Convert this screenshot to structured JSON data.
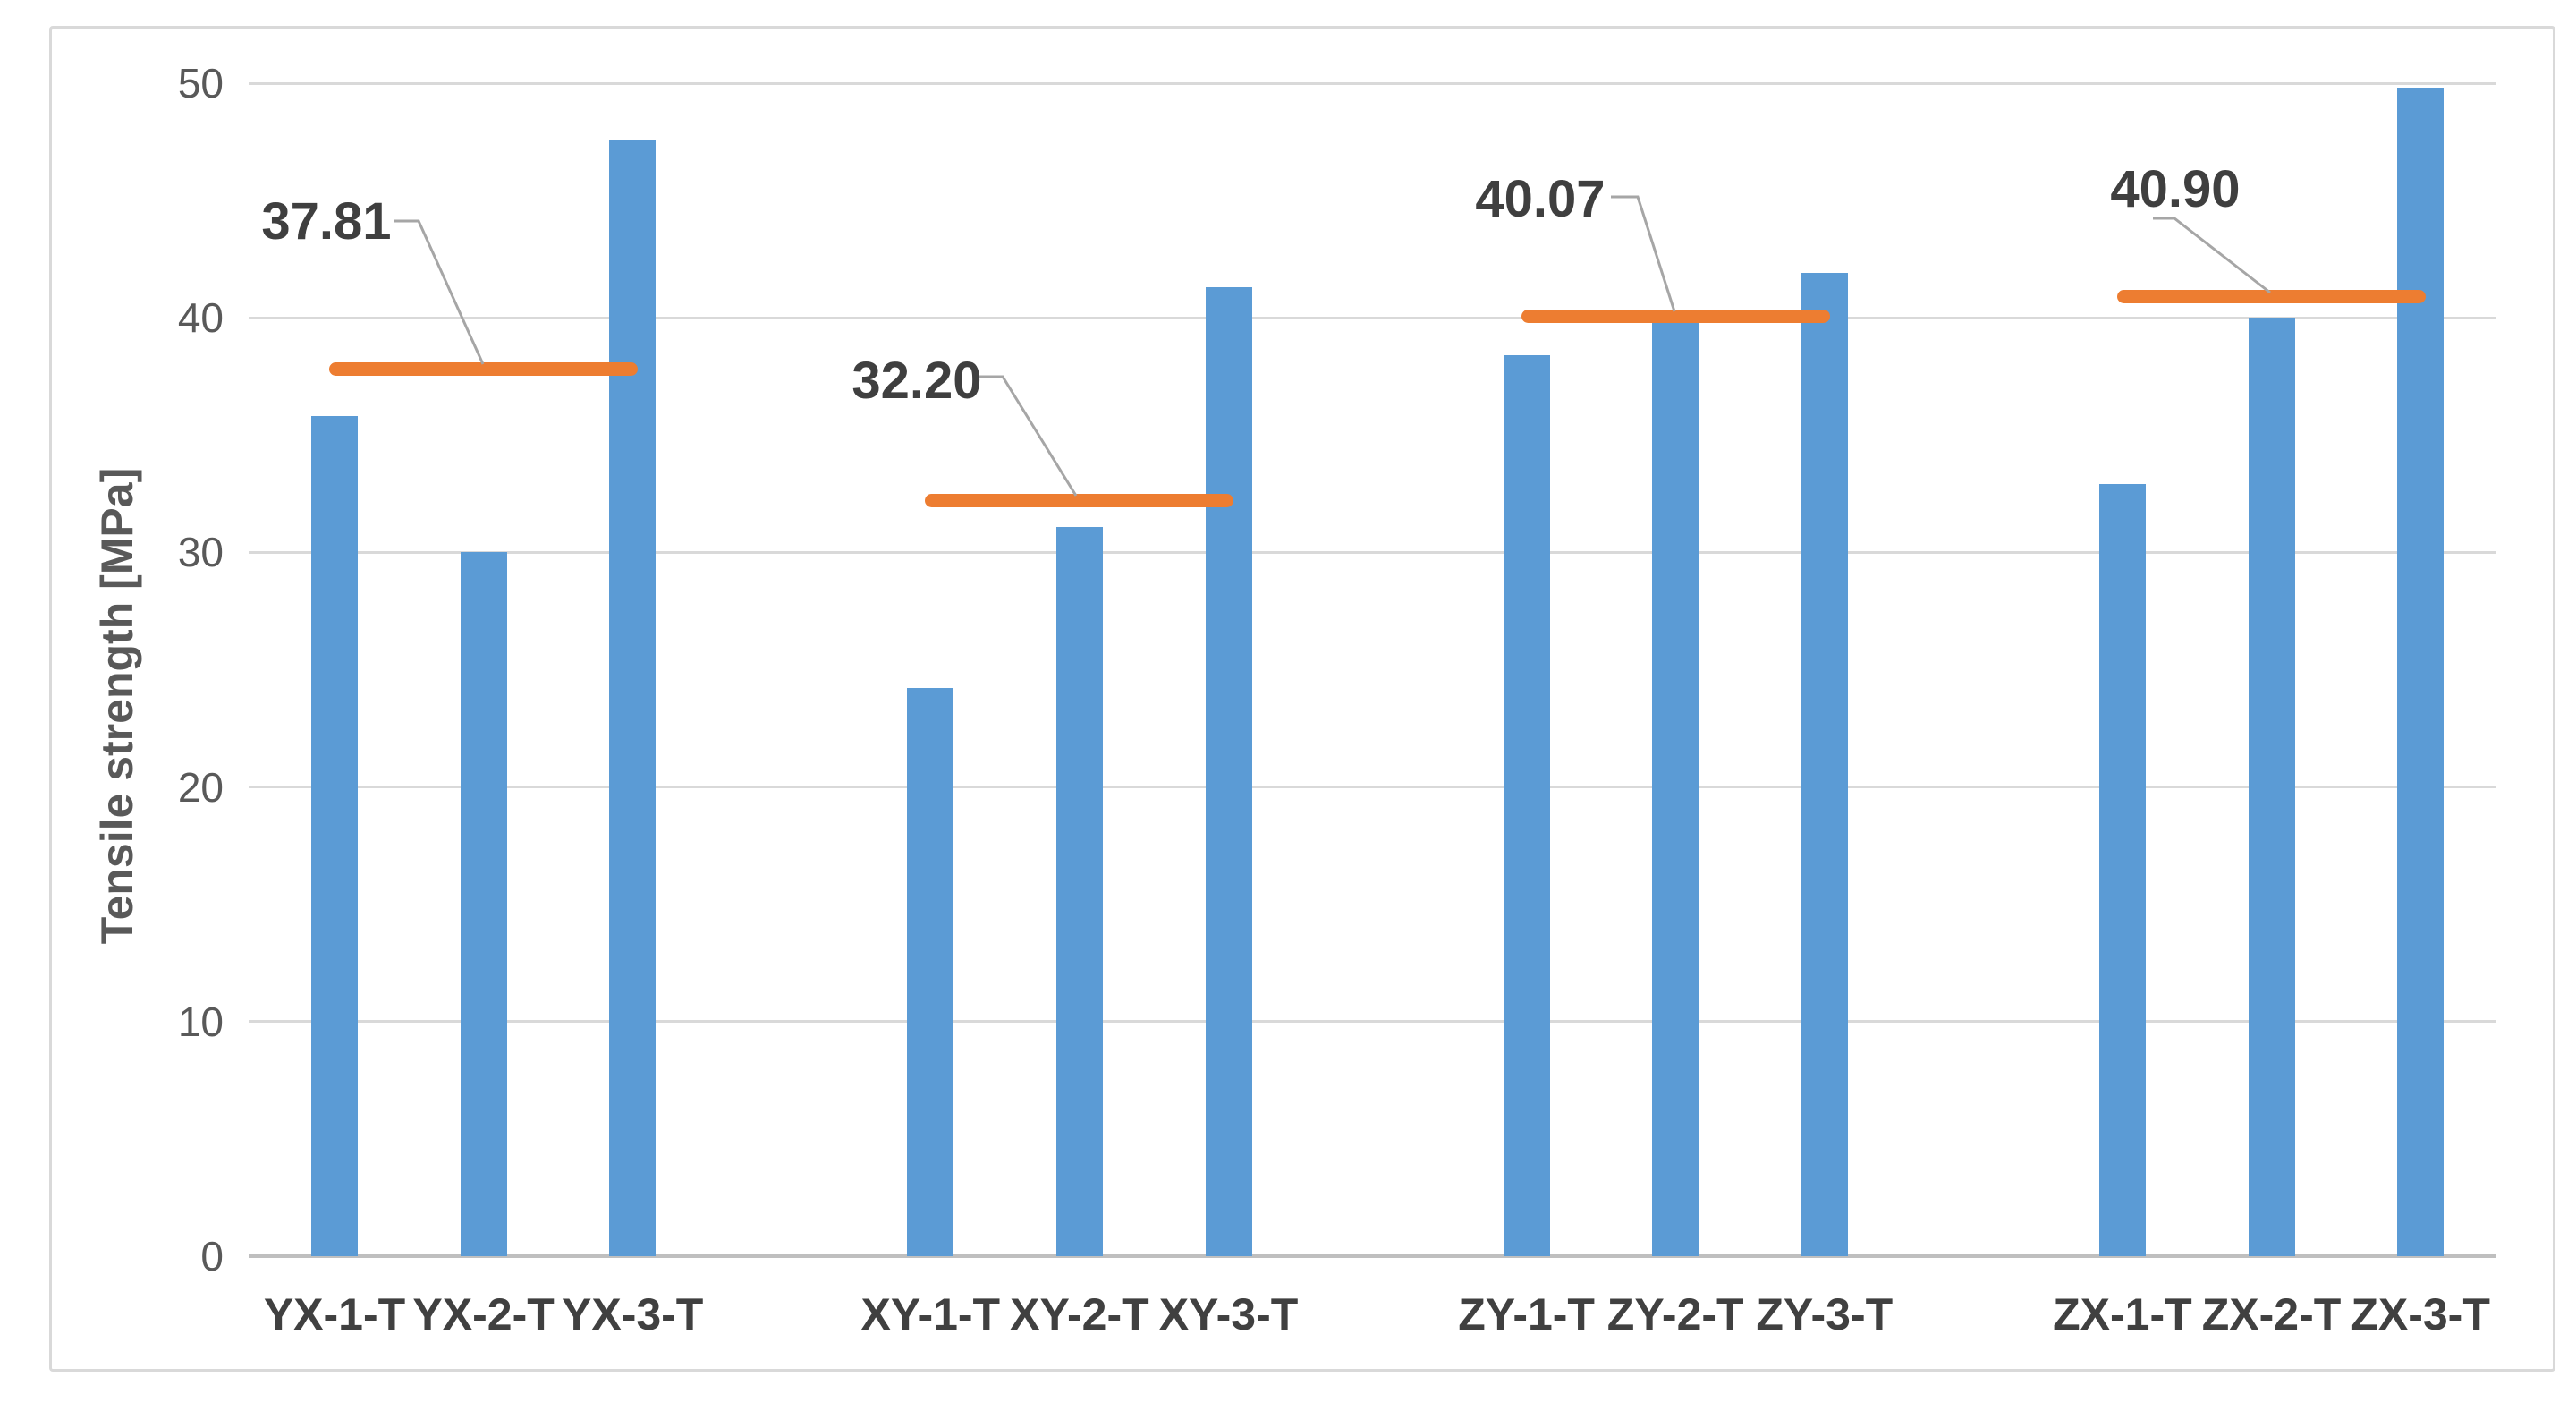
{
  "chart_data": {
    "type": "bar",
    "title": "",
    "ylabel": "Tensile strength [MPa]",
    "xlabel": "",
    "ylim": [
      0,
      50
    ],
    "yticks": [
      0,
      10,
      20,
      30,
      40,
      50
    ],
    "grid": true,
    "legend": false,
    "bar_color": "#5b9bd5",
    "mean_line_color": "#ed7d31",
    "gridline_color": "#d9d9d9",
    "axis_line_color": "#bfbfbf",
    "leader_line_color": "#a6a6a6",
    "categories": [
      "YX-1-T",
      "YX-2-T",
      "YX-3-T",
      "XY-1-T",
      "XY-2-T",
      "XY-3-T",
      "ZY-1-T",
      "ZY-2-T",
      "ZY-3-T",
      "ZX-1-T",
      "ZX-2-T",
      "ZX-3-T"
    ],
    "values": [
      35.8,
      30.0,
      47.6,
      24.2,
      31.1,
      41.3,
      38.4,
      39.9,
      41.9,
      32.9,
      40.0,
      49.8
    ],
    "mean_lines": [
      {
        "label": "37.81",
        "value": 37.81,
        "group": [
          "YX-1-T",
          "YX-2-T",
          "YX-3-T"
        ]
      },
      {
        "label": "32.20",
        "value": 32.2,
        "group": [
          "XY-1-T",
          "XY-2-T",
          "XY-3-T"
        ]
      },
      {
        "label": "40.07",
        "value": 40.07,
        "group": [
          "ZY-1-T",
          "ZY-2-T",
          "ZY-3-T"
        ]
      },
      {
        "label": "40.90",
        "value": 40.9,
        "group": [
          "ZX-1-T",
          "ZX-2-T",
          "ZX-3-T"
        ]
      }
    ]
  }
}
